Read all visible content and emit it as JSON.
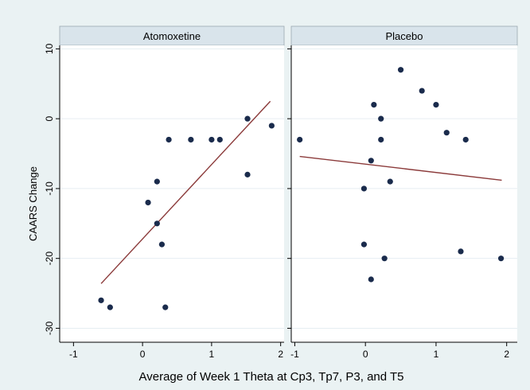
{
  "figure": {
    "xlabel": "Average of Week 1 Theta at Cp3, Tp7, P3, and T5",
    "ylabel": "CAARS Change"
  },
  "colors": {
    "outer_background": "#eaf2f3",
    "panel_background": "#ffffff",
    "strip_background": "#d9e4eb",
    "point": "#1a2b4c",
    "fit_line": "#8b3a3a",
    "axis": "#000000",
    "grid": "#e6eef2"
  },
  "chart_data": [
    {
      "type": "scatter",
      "title": "Atomoxetine",
      "xlabel": "Average of Week 1 Theta at Cp3, Tp7, P3, and T5",
      "ylabel": "CAARS Change",
      "xlim": [
        -1.2,
        2.05
      ],
      "ylim": [
        -32,
        10.5
      ],
      "xticks": [
        -1,
        0,
        1,
        2
      ],
      "yticks": [
        10,
        0,
        -10,
        -20,
        -30
      ],
      "grid": true,
      "points": [
        {
          "x": -0.6,
          "y": -26
        },
        {
          "x": -0.47,
          "y": -27
        },
        {
          "x": 0.08,
          "y": -12
        },
        {
          "x": 0.21,
          "y": -9
        },
        {
          "x": 0.21,
          "y": -15
        },
        {
          "x": 0.28,
          "y": -18
        },
        {
          "x": 0.33,
          "y": -27
        },
        {
          "x": 0.38,
          "y": -3
        },
        {
          "x": 0.7,
          "y": -3
        },
        {
          "x": 1.0,
          "y": -3
        },
        {
          "x": 1.12,
          "y": -3
        },
        {
          "x": 1.52,
          "y": 0
        },
        {
          "x": 1.52,
          "y": -8
        },
        {
          "x": 1.87,
          "y": -1
        }
      ],
      "fit_line": {
        "x": [
          -0.6,
          1.85
        ],
        "y": [
          -23.6,
          2.5
        ]
      }
    },
    {
      "type": "scatter",
      "title": "Placebo",
      "xlabel": "Average of Week 1 Theta at Cp3, Tp7, P3, and T5",
      "ylabel": "CAARS Change",
      "xlim": [
        -1.05,
        2.15
      ],
      "ylim": [
        -32,
        10.5
      ],
      "xticks": [
        -1,
        0,
        1,
        2
      ],
      "yticks": [
        10,
        0,
        -10,
        -20,
        -30
      ],
      "grid": true,
      "points": [
        {
          "x": -0.93,
          "y": -3
        },
        {
          "x": -0.02,
          "y": -10
        },
        {
          "x": -0.02,
          "y": -18
        },
        {
          "x": 0.08,
          "y": -6
        },
        {
          "x": 0.08,
          "y": -23
        },
        {
          "x": 0.12,
          "y": 2
        },
        {
          "x": 0.22,
          "y": 0
        },
        {
          "x": 0.22,
          "y": -3
        },
        {
          "x": 0.27,
          "y": -20
        },
        {
          "x": 0.35,
          "y": -9
        },
        {
          "x": 0.5,
          "y": 7
        },
        {
          "x": 0.8,
          "y": 4
        },
        {
          "x": 1.0,
          "y": 2
        },
        {
          "x": 1.15,
          "y": -2
        },
        {
          "x": 1.35,
          "y": -19
        },
        {
          "x": 1.42,
          "y": -3
        },
        {
          "x": 1.92,
          "y": -20
        }
      ],
      "fit_line": {
        "x": [
          -0.93,
          1.93
        ],
        "y": [
          -5.4,
          -8.8
        ]
      }
    }
  ]
}
